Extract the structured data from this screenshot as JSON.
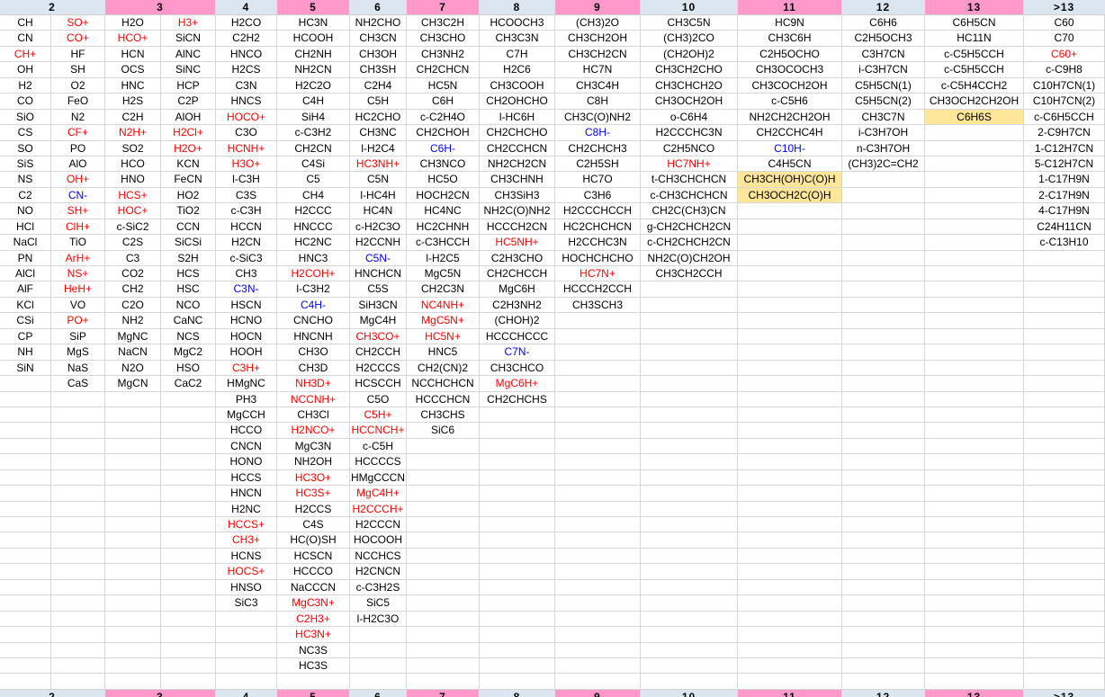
{
  "colors": {
    "header_blue": "#dce6f1",
    "header_pink": "#ff99cc",
    "highlight_yellow": "#ffe699",
    "cation_red": "#ff0000",
    "anion_blue": "#0000ff",
    "grid_line": "#d6d6d6",
    "text": "#000000",
    "background": "#ffffff"
  },
  "rows": 43,
  "groups": [
    {
      "label": "2",
      "bg": "blue",
      "widths": [
        57,
        60
      ],
      "columns": [
        [
          "CH",
          "CN",
          {
            "t": "CH+",
            "i": "c"
          },
          "OH",
          "H2",
          "CO",
          "SiO",
          "CS",
          "SO",
          "SiS",
          "NS",
          "C2",
          "NO",
          "HCl",
          "NaCl",
          "PN",
          "AlCl",
          "AlF",
          "KCl",
          "CSi",
          "CP",
          "NH",
          "SiN"
        ],
        [
          {
            "t": "SO+",
            "i": "c"
          },
          {
            "t": "CO+",
            "i": "c"
          },
          "HF",
          "SH",
          "O2",
          "FeO",
          "N2",
          {
            "t": "CF+",
            "i": "c"
          },
          "PO",
          "AlO",
          {
            "t": "OH+",
            "i": "c"
          },
          {
            "t": "CN-",
            "i": "a"
          },
          {
            "t": "SH+",
            "i": "c"
          },
          {
            "t": "ClH+",
            "i": "c"
          },
          "TiO",
          {
            "t": "ArH+",
            "i": "c"
          },
          {
            "t": "NS+",
            "i": "c"
          },
          {
            "t": "HeH+",
            "i": "c"
          },
          "VO",
          {
            "t": "PO+",
            "i": "c"
          },
          "SiP",
          "MgS",
          "NaS",
          "CaS"
        ]
      ]
    },
    {
      "label": "3",
      "bg": "pink",
      "widths": [
        62,
        61
      ],
      "columns": [
        [
          "H2O",
          {
            "t": "HCO+",
            "i": "c"
          },
          "HCN",
          "OCS",
          "HNC",
          "H2S",
          "C2H",
          {
            "t": "N2H+",
            "i": "c"
          },
          "SO2",
          "HCO",
          "HNO",
          {
            "t": "HCS+",
            "i": "c"
          },
          {
            "t": "HOC+",
            "i": "c"
          },
          "c-SiC2",
          "C2S",
          "C3",
          "CO2",
          "CH2",
          "C2O",
          "NH2",
          "MgNC",
          "NaCN",
          "N2O",
          "MgCN"
        ],
        [
          {
            "t": "H3+",
            "i": "c"
          },
          "SiCN",
          "AlNC",
          "SiNC",
          "HCP",
          "C2P",
          "AlOH",
          {
            "t": "H2Cl+",
            "i": "c"
          },
          {
            "t": "H2O+",
            "i": "c"
          },
          "KCN",
          "FeCN",
          "HO2",
          "TiO2",
          "CCN",
          "SiCSi",
          "S2H",
          "HCS",
          "HSC",
          "NCO",
          "CaNC",
          "NCS",
          "MgC2",
          "HSO",
          "CaC2"
        ]
      ]
    },
    {
      "label": "4",
      "bg": "blue",
      "widths": [
        68
      ],
      "columns": [
        [
          "H2CO",
          "C2H2",
          "HNCO",
          "H2CS",
          "C3N",
          "HNCS",
          {
            "t": "HOCO+",
            "i": "c"
          },
          "C3O",
          {
            "t": "HCNH+",
            "i": "c"
          },
          {
            "t": "H3O+",
            "i": "c"
          },
          "l-C3H",
          "C3S",
          "c-C3H",
          "HCCN",
          "H2CN",
          "c-SiC3",
          "CH3",
          {
            "t": "C3N-",
            "i": "a"
          },
          "HSCN",
          "HCNO",
          "HOCN",
          "HOOH",
          {
            "t": "C3H+",
            "i": "c"
          },
          "HMgNC",
          "PH3",
          "MgCCH",
          "HCCO",
          "CNCN",
          "HONO",
          "HCCS",
          "HNCN",
          "H2NC",
          {
            "t": "HCCS+",
            "i": "c"
          },
          {
            "t": "CH3+",
            "i": "c"
          },
          "HCNS",
          {
            "t": "HOCS+",
            "i": "c"
          },
          "HNSO",
          "SiC3"
        ]
      ]
    },
    {
      "label": "5",
      "bg": "pink",
      "widths": [
        81
      ],
      "columns": [
        [
          "HC3N",
          "HCOOH",
          "CH2NH",
          "NH2CN",
          "H2C2O",
          "C4H",
          "SiH4",
          "c-C3H2",
          "CH2CN",
          "C4Si",
          "C5",
          "CH4",
          "H2CCC",
          "HNCCC",
          "HC2NC",
          "HNC3",
          {
            "t": "H2COH+",
            "i": "c"
          },
          "l-C3H2",
          {
            "t": "C4H-",
            "i": "a"
          },
          "CNCHO",
          "HNCNH",
          "CH3O",
          "CH3D",
          {
            "t": "NH3D+",
            "i": "c"
          },
          {
            "t": "NCCNH+",
            "i": "c"
          },
          "CH3Cl",
          {
            "t": "H2NCO+",
            "i": "c"
          },
          "MgC3N",
          "NH2OH",
          {
            "t": "HC3O+",
            "i": "c"
          },
          {
            "t": "HC3S+",
            "i": "c"
          },
          "H2CCS",
          "C4S",
          "HC(O)SH",
          "HCSCN",
          "HCCCO",
          "NaCCCN",
          {
            "t": "MgC3N+",
            "i": "c"
          },
          {
            "t": "C2H3+",
            "i": "c"
          },
          {
            "t": "HC3N+",
            "i": "c"
          },
          "NC3S",
          "HC3S"
        ]
      ]
    },
    {
      "label": "6",
      "bg": "blue",
      "widths": [
        63
      ],
      "columns": [
        [
          "NH2CHO",
          "CH3CN",
          "CH3OH",
          "CH3SH",
          "C2H4",
          "C5H",
          "HC2CHO",
          "CH3NC",
          "l-H2C4",
          {
            "t": "HC3NH+",
            "i": "c"
          },
          "C5N",
          "l-HC4H",
          "HC4N",
          "c-H2C3O",
          "H2CCNH",
          {
            "t": "C5N-",
            "i": "a"
          },
          "HNCHCN",
          "C5S",
          "SiH3CN",
          "MgC4H",
          {
            "t": "CH3CO+",
            "i": "c"
          },
          "CH2CCH",
          "H2CCCS",
          "HCSCCH",
          "C5O",
          {
            "t": "C5H+",
            "i": "c"
          },
          {
            "t": "HCCNCH+",
            "i": "c"
          },
          "c-C5H",
          "HCCCCS",
          "HMgCCCN",
          {
            "t": "MgC4H+",
            "i": "c"
          },
          {
            "t": "H2CCCH+",
            "i": "c"
          },
          "H2CCCN",
          "HOCOOH",
          "NCCHCS",
          "H2CNCN",
          "c-C3H2S",
          "SiC5",
          "l-H2C3O"
        ]
      ]
    },
    {
      "label": "7",
      "bg": "pink",
      "widths": [
        81
      ],
      "columns": [
        [
          "CH3C2H",
          "CH3CHO",
          "CH3NH2",
          "CH2CHCN",
          "HC5N",
          "C6H",
          "c-C2H4O",
          "CH2CHOH",
          {
            "t": "C6H-",
            "i": "a"
          },
          "CH3NCO",
          "HC5O",
          "HOCH2CN",
          "HC4NC",
          "HC2CHNH",
          "c-C3HCCH",
          "l-H2C5",
          "MgC5N",
          "CH2C3N",
          {
            "t": "NC4NH+",
            "i": "c"
          },
          {
            "t": "MgC5N+",
            "i": "c"
          },
          {
            "t": "HC5N+",
            "i": "c"
          },
          "HNC5",
          "CH2(CN)2",
          "NCCHCHCN",
          "HCCCHCN",
          "CH3CHS",
          "SiC6"
        ]
      ]
    },
    {
      "label": "8",
      "bg": "blue",
      "widths": [
        84
      ],
      "columns": [
        [
          "HCOOCH3",
          "CH3C3N",
          "C7H",
          "H2C6",
          "CH3COOH",
          "CH2OHCHO",
          "l-HC6H",
          "CH2CHCHO",
          "CH2CCHCN",
          "NH2CH2CN",
          "CH3CHNH",
          "CH3SiH3",
          "NH2C(O)NH2",
          "HCCCH2CN",
          {
            "t": "HC5NH+",
            "i": "c"
          },
          "C2H3CHO",
          "CH2CHCCH",
          "MgC6H",
          "C2H3NH2",
          "(CHOH)2",
          "HCCCHCCC",
          {
            "t": "C7N-",
            "i": "a"
          },
          "CH3CHCO",
          {
            "t": "MgC6H+",
            "i": "c"
          },
          "CH2CHCHS"
        ]
      ]
    },
    {
      "label": "9",
      "bg": "pink",
      "widths": [
        95
      ],
      "columns": [
        [
          "(CH3)2O",
          "CH3CH2OH",
          "CH3CH2CN",
          "HC7N",
          "CH3C4H",
          "C8H",
          "CH3C(O)NH2",
          {
            "t": "C8H-",
            "i": "a"
          },
          "CH2CHCH3",
          "C2H5SH",
          "HC7O",
          "C3H6",
          "H2CCCHCCH",
          "HC2CHCHCN",
          "H2CCHC3N",
          "HOCHCHCHO",
          {
            "t": "HC7N+",
            "i": "c"
          },
          "HCCCH2CCH",
          "CH3SCH3"
        ]
      ]
    },
    {
      "label": "10",
      "bg": "blue",
      "widths": [
        108
      ],
      "columns": [
        [
          "CH3C5N",
          "(CH3)2CO",
          "(CH2OH)2",
          "CH3CH2CHO",
          "CH3CHCH2O",
          "CH3OCH2OH",
          "o-C6H4",
          "H2CCCHC3N",
          "C2H5NCO",
          {
            "t": "HC7NH+",
            "i": "c"
          },
          "t-CH3CHCHCN",
          "c-CH3CHCHCN",
          "CH2C(CH3)CN",
          "g-CH2CHCH2CN",
          "c-CH2CHCH2CN",
          "NH2C(O)CH2OH",
          "CH3CH2CCH"
        ]
      ]
    },
    {
      "label": "11",
      "bg": "pink",
      "widths": [
        116
      ],
      "columns": [
        [
          "HC9N",
          "CH3C6H",
          "C2H5OCHO",
          "CH3OCOCH3",
          "CH3COCH2OH",
          "c-C5H6",
          "NH2CH2CH2OH",
          "CH2CCHC4H",
          {
            "t": "C10H-",
            "i": "a"
          },
          "C4H5CN",
          {
            "t": "CH3CH(OH)C(O)H",
            "h": true
          },
          {
            "t": "CH3OCH2C(O)H",
            "h": true
          }
        ]
      ]
    },
    {
      "label": "12",
      "bg": "blue",
      "widths": [
        92
      ],
      "columns": [
        [
          "C6H6",
          "C2H5OCH3",
          "C3H7CN",
          "i-C3H7CN",
          "C5H5CN(1)",
          "C5H5CN(2)",
          "CH3C7N",
          "i-C3H7OH",
          "n-C3H7OH",
          "(CH3)2C=CH2"
        ]
      ]
    },
    {
      "label": "13",
      "bg": "pink",
      "widths": [
        110
      ],
      "columns": [
        [
          "C6H5CN",
          "HC11N",
          "c-C5H5CCH",
          "c-C5H5CCH",
          "c-C5H4CCH2",
          "CH3OCH2CH2OH",
          {
            "t": "C6H6S",
            "h": true
          }
        ]
      ]
    },
    {
      "label": ">13",
      "bg": "blue",
      "widths": [
        90
      ],
      "columns": [
        [
          "C60",
          "C70",
          {
            "t": "C60+",
            "i": "c"
          },
          "c-C9H8",
          "C10H7CN(1)",
          "C10H7CN(2)",
          "c-C6H5CCH",
          "2-C9H7CN",
          "1-C12H7CN",
          "5-C12H7CN",
          "1-C17H9N",
          "2-C17H9N",
          "4-C17H9N",
          "C24H11CN",
          "c-C13H10"
        ]
      ]
    }
  ]
}
